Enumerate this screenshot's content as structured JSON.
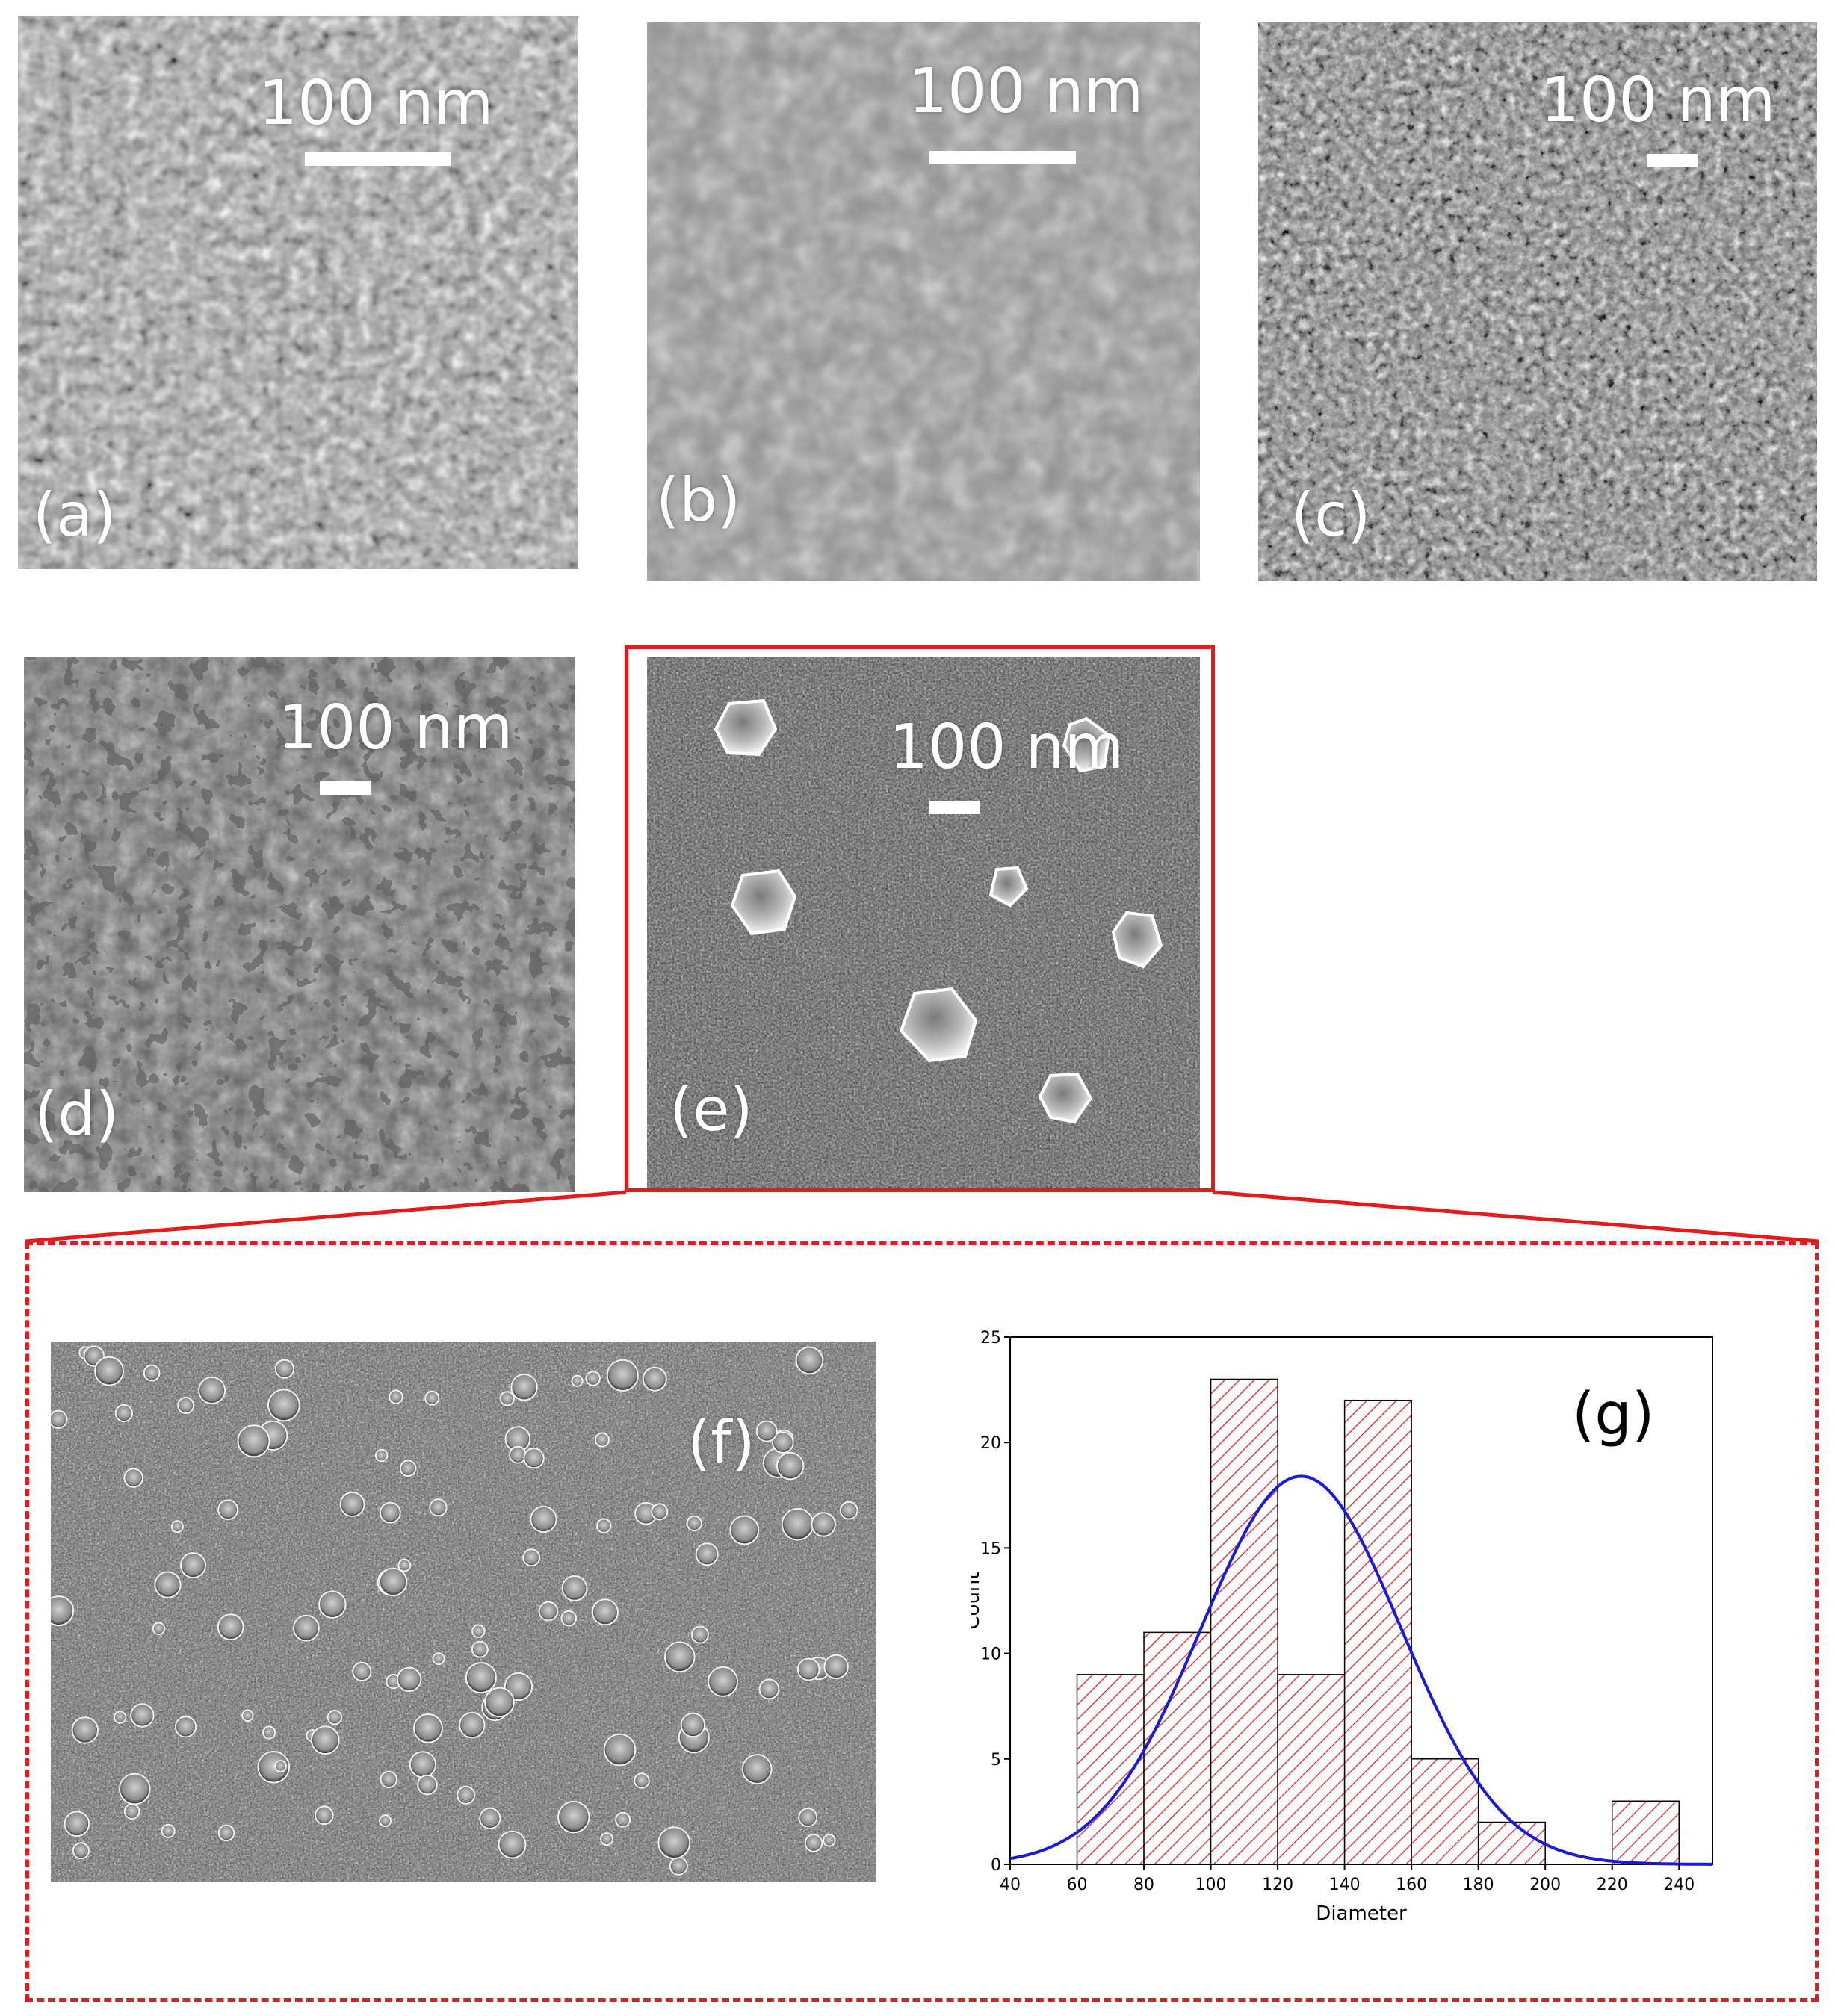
{
  "panels": [
    {
      "label": "(a)",
      "scale": "100 nm"
    },
    {
      "label": "(b)",
      "scale": "100 nm"
    },
    {
      "label": "(c)",
      "scale": "100 nm"
    },
    {
      "label": "(d)",
      "scale": "100 nm"
    },
    {
      "label": "(e)",
      "scale": "100 nm"
    },
    {
      "label": "(f)"
    }
  ],
  "colors": {
    "highlight": "#e31b1b",
    "fit_curve": "#1a1adb",
    "bar_hatch": "#e31b1b"
  },
  "chart_data": {
    "type": "bar",
    "title": "",
    "panel_label": "(g)",
    "xlabel": "Diameter",
    "ylabel": "Count",
    "xlim": [
      40,
      250
    ],
    "ylim": [
      0,
      25
    ],
    "x_ticks": [
      40,
      60,
      80,
      100,
      120,
      140,
      160,
      180,
      200,
      220,
      240
    ],
    "y_ticks": [
      0,
      5,
      10,
      15,
      20,
      25
    ],
    "bins": [
      {
        "start": 60,
        "end": 80,
        "count": 9
      },
      {
        "start": 80,
        "end": 100,
        "count": 11
      },
      {
        "start": 100,
        "end": 120,
        "count": 23
      },
      {
        "start": 120,
        "end": 140,
        "count": 9
      },
      {
        "start": 140,
        "end": 160,
        "count": 22
      },
      {
        "start": 160,
        "end": 180,
        "count": 5
      },
      {
        "start": 180,
        "end": 200,
        "count": 2
      },
      {
        "start": 200,
        "end": 220,
        "count": 0
      },
      {
        "start": 220,
        "end": 240,
        "count": 3
      }
    ],
    "fit": {
      "type": "gaussian",
      "mean": 127,
      "sd": 30,
      "peak": 18.4
    }
  }
}
